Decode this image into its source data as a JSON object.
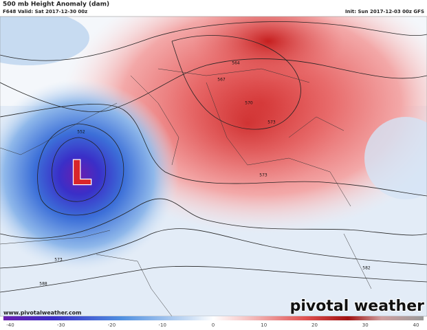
{
  "header": {
    "title": "500 mb Height Anomaly (dam)",
    "valid": "F648 Valid: Sat 2017-12-30 00z",
    "init": "Init: Sun 2017-12-03 00z GFS"
  },
  "map": {
    "low_marker": "L",
    "contour_labels": [
      "552",
      "564",
      "567",
      "570",
      "573",
      "573",
      "573",
      "582",
      "588"
    ]
  },
  "colorbar": {
    "ticks": [
      -40,
      -30,
      -20,
      -10,
      0,
      10,
      20,
      30,
      40
    ]
  },
  "footer": {
    "website": "www.pivotalweather.com",
    "logo": "pivotal weather"
  }
}
